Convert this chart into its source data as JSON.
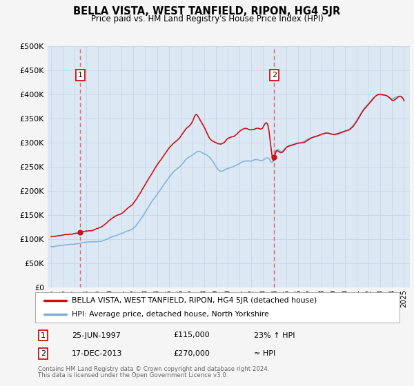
{
  "title": "BELLA VISTA, WEST TANFIELD, RIPON, HG4 5JR",
  "subtitle": "Price paid vs. HM Land Registry's House Price Index (HPI)",
  "bg_color": "#f5f5f5",
  "plot_bg_color": "#dde8f5",
  "grid_color": "#c8d8e8",
  "ylim": [
    0,
    500000
  ],
  "yticks": [
    0,
    50000,
    100000,
    150000,
    200000,
    250000,
    300000,
    350000,
    400000,
    450000,
    500000
  ],
  "ytick_labels": [
    "£0",
    "£50K",
    "£100K",
    "£150K",
    "£200K",
    "£250K",
    "£300K",
    "£350K",
    "£400K",
    "£450K",
    "£500K"
  ],
  "xmin": 1994.7,
  "xmax": 2025.5,
  "sale1_x": 1997.48,
  "sale1_y": 115000,
  "sale1_label": "1",
  "sale1_date": "25-JUN-1997",
  "sale1_price": "£115,000",
  "sale1_hpi": "23% ↑ HPI",
  "sale2_x": 2013.96,
  "sale2_y": 270000,
  "sale2_label": "2",
  "sale2_date": "17-DEC-2013",
  "sale2_price": "£270,000",
  "sale2_hpi": "≈ HPI",
  "red_line_color": "#cc1111",
  "blue_line_color": "#7ab0d4",
  "dashed_line_color": "#e06060",
  "legend_label_red": "BELLA VISTA, WEST TANFIELD, RIPON, HG4 5JR (detached house)",
  "legend_label_blue": "HPI: Average price, detached house, North Yorkshire",
  "footer1": "Contains HM Land Registry data © Crown copyright and database right 2024.",
  "footer2": "This data is licensed under the Open Government Licence v3.0.",
  "xtick_years": [
    1995,
    1996,
    1997,
    1998,
    1999,
    2000,
    2001,
    2002,
    2003,
    2004,
    2005,
    2006,
    2007,
    2008,
    2009,
    2010,
    2011,
    2012,
    2013,
    2014,
    2015,
    2016,
    2017,
    2018,
    2019,
    2020,
    2021,
    2022,
    2023,
    2024,
    2025
  ]
}
